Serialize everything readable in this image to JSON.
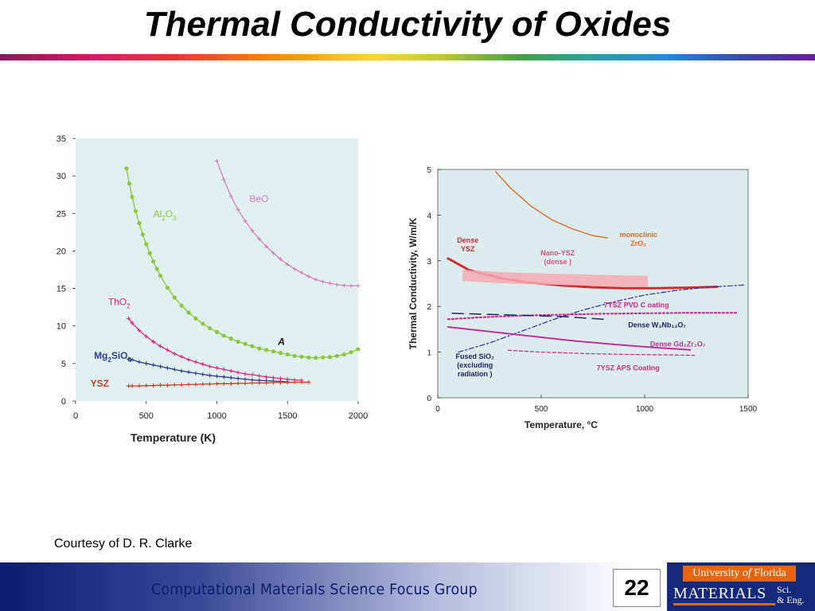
{
  "slide": {
    "title": "Thermal Conductivity of Oxides",
    "courtesy": "Courtesy of D. R. Clarke",
    "footer_group": "Computational Materials Science Focus Group",
    "slide_number": "22",
    "logo": {
      "university_pre": "University ",
      "university_of": "of",
      "university_post": " Florida",
      "materials": "MATERIALS",
      "sci": "Sci.",
      "eng": "& Eng."
    }
  },
  "colors": {
    "title": "#000000",
    "footer_text": "#0b1f6e",
    "logo_blue": "#14297a",
    "logo_orange": "#e8650f",
    "plot_bg_left": "#dff0ee",
    "plot_bg_right": "#dcebec"
  },
  "chart_data": [
    {
      "type": "scatter",
      "title": "",
      "xlabel": "Temperature  (K)",
      "ylabel": "",
      "xlim": [
        0,
        2000
      ],
      "ylim": [
        0,
        35
      ],
      "xticks": [
        0,
        500,
        1000,
        1500,
        2000
      ],
      "yticks": [
        0,
        5,
        10,
        15,
        20,
        25,
        30,
        35
      ],
      "annotations": [
        {
          "text": "A",
          "x": 1500,
          "y": 7.5
        }
      ],
      "series": [
        {
          "name": "BeO",
          "label_main": "BeO",
          "label_sub": "",
          "label_sub2": "",
          "label_tail": "",
          "label_x": 1230,
          "label_y": 26.5,
          "color": "#d77fc0",
          "marker": "+",
          "x": [
            1000,
            1050,
            1100,
            1150,
            1200,
            1250,
            1300,
            1350,
            1400,
            1450,
            1500,
            1550,
            1600,
            1650,
            1700,
            1750,
            1800,
            1850,
            1900,
            1950,
            2000
          ],
          "y": [
            32.0,
            29.5,
            27.3,
            25.5,
            24.0,
            22.7,
            21.6,
            20.6,
            19.7,
            18.9,
            18.2,
            17.6,
            17.1,
            16.6,
            16.2,
            15.9,
            15.7,
            15.5,
            15.4,
            15.35,
            15.35
          ]
        },
        {
          "name": "Al2O3",
          "label_main": "Al",
          "label_sub": "2",
          "label_sub2": "3",
          "label_tail": "O",
          "label_x": 550,
          "label_y": 24.5,
          "color": "#8cc63f",
          "marker": "o",
          "x": [
            360,
            380,
            400,
            425,
            450,
            475,
            500,
            525,
            550,
            575,
            600,
            650,
            700,
            750,
            800,
            850,
            900,
            950,
            1000,
            1050,
            1100,
            1150,
            1200,
            1250,
            1300,
            1350,
            1400,
            1450,
            1500,
            1550,
            1600,
            1650,
            1700,
            1750,
            1800,
            1850,
            1900,
            1950,
            2000
          ],
          "y": [
            31.0,
            29.0,
            27.2,
            25.3,
            23.7,
            22.2,
            20.9,
            19.7,
            18.6,
            17.6,
            16.7,
            15.1,
            13.8,
            12.7,
            11.8,
            11.0,
            10.3,
            9.7,
            9.2,
            8.7,
            8.3,
            7.9,
            7.6,
            7.3,
            7.0,
            6.8,
            6.6,
            6.4,
            6.2,
            6.0,
            5.9,
            5.8,
            5.75,
            5.8,
            5.85,
            6.0,
            6.2,
            6.5,
            6.9
          ]
        },
        {
          "name": "ThO2",
          "label_main": "ThO",
          "label_sub": "2",
          "label_sub2": "",
          "label_tail": "",
          "label_x": 230,
          "label_y": 12.8,
          "color": "#e0287a",
          "marker": "+",
          "x": [
            375,
            400,
            450,
            500,
            550,
            600,
            650,
            700,
            750,
            800,
            850,
            900,
            950,
            1000,
            1050,
            1100,
            1150,
            1200,
            1250,
            1300,
            1350,
            1400,
            1450,
            1500,
            1550,
            1600
          ],
          "y": [
            11.0,
            10.4,
            9.4,
            8.6,
            7.9,
            7.3,
            6.8,
            6.3,
            5.9,
            5.5,
            5.2,
            4.9,
            4.6,
            4.4,
            4.2,
            4.0,
            3.8,
            3.6,
            3.5,
            3.35,
            3.2,
            3.1,
            3.0,
            2.9,
            2.8,
            2.75
          ]
        },
        {
          "name": "Mg2SiO4",
          "label_main": "Mg",
          "label_sub": "2",
          "label_sub2": "4",
          "label_tail": "SiO",
          "label_x": 130,
          "label_y": 5.6,
          "color": "#2e3c9a",
          "marker": "+",
          "x": [
            375,
            400,
            450,
            500,
            550,
            600,
            650,
            700,
            750,
            800,
            850,
            900,
            950,
            1000,
            1050,
            1100,
            1150,
            1200,
            1250,
            1300,
            1350,
            1400,
            1450,
            1500
          ],
          "y": [
            5.6,
            5.5,
            5.2,
            5.0,
            4.8,
            4.6,
            4.4,
            4.2,
            4.0,
            3.85,
            3.7,
            3.55,
            3.4,
            3.3,
            3.2,
            3.1,
            3.0,
            2.9,
            2.8,
            2.75,
            2.7,
            2.65,
            2.6,
            2.55
          ]
        },
        {
          "name": "YSZ",
          "label_main": "YSZ",
          "label_sub": "",
          "label_sub2": "",
          "label_tail": "",
          "label_x": 105,
          "label_y": 1.9,
          "color": "#d03a2a",
          "marker": "+",
          "x": [
            375,
            400,
            450,
            500,
            550,
            600,
            650,
            700,
            750,
            800,
            850,
            900,
            950,
            1000,
            1050,
            1100,
            1150,
            1200,
            1250,
            1300,
            1350,
            1400,
            1450,
            1500,
            1550,
            1600,
            1650
          ],
          "y": [
            2.0,
            2.0,
            2.0,
            2.05,
            2.05,
            2.1,
            2.1,
            2.15,
            2.15,
            2.2,
            2.2,
            2.25,
            2.25,
            2.3,
            2.3,
            2.3,
            2.35,
            2.35,
            2.4,
            2.4,
            2.4,
            2.45,
            2.45,
            2.45,
            2.5,
            2.5,
            2.5
          ]
        }
      ]
    },
    {
      "type": "line",
      "title": "",
      "xlabel": "Temperature, °C",
      "ylabel": "Thermal Conductivity, W/m/K",
      "xlim": [
        0,
        1500
      ],
      "ylim": [
        0,
        5
      ],
      "xticks": [
        0,
        500,
        1000,
        1500
      ],
      "yticks": [
        0,
        1,
        2,
        3,
        4,
        5
      ],
      "series": [
        {
          "name": "monoclinic ZrO2",
          "color": "#e06a2a",
          "dash": "solid",
          "width": 1.4,
          "x": [
            280,
            350,
            450,
            550,
            650,
            750,
            820
          ],
          "y": [
            4.95,
            4.6,
            4.2,
            3.9,
            3.7,
            3.55,
            3.5
          ]
        },
        {
          "name": "Dense YSZ",
          "color": "#d42c2c",
          "dash": "solid",
          "width": 3,
          "x": [
            50,
            150,
            300,
            450,
            600,
            750,
            900,
            1050,
            1200,
            1350
          ],
          "y": [
            3.05,
            2.8,
            2.62,
            2.52,
            2.46,
            2.42,
            2.4,
            2.4,
            2.41,
            2.43
          ]
        },
        {
          "name": "Nano-YSZ (dense)",
          "color": "#f4a9b4",
          "dash": "band",
          "width": 14,
          "x": [
            120,
            300,
            500,
            700,
            850,
            1015
          ],
          "y": [
            2.68,
            2.63,
            2.6,
            2.58,
            2.56,
            2.55
          ]
        },
        {
          "name": "Fused SiO2 (excluding radiation)",
          "color": "#3a3ab0",
          "dash": "6,3,2,3",
          "width": 1.3,
          "x": [
            100,
            250,
            400,
            550,
            700,
            850,
            1000,
            1150,
            1300,
            1480
          ],
          "y": [
            1.0,
            1.2,
            1.45,
            1.7,
            1.92,
            2.1,
            2.25,
            2.35,
            2.42,
            2.47
          ]
        },
        {
          "name": "7YSZ PVD Coating",
          "color": "#d42a8a",
          "dash": "2,3",
          "width": 2.2,
          "x": [
            50,
            200,
            400,
            600,
            800,
            1000,
            1200,
            1450
          ],
          "y": [
            1.72,
            1.76,
            1.8,
            1.82,
            1.84,
            1.85,
            1.86,
            1.86
          ]
        },
        {
          "name": "Dense W3Nb14O7",
          "color": "#22226a",
          "dash": "14,8",
          "width": 1.5,
          "x": [
            70,
            300,
            600,
            800
          ],
          "y": [
            1.85,
            1.82,
            1.78,
            1.72
          ]
        },
        {
          "name": "Dense Gd2Zr2O7",
          "color": "#c0309a",
          "dash": "solid",
          "width": 2,
          "x": [
            50,
            250,
            450,
            650,
            850,
            1050,
            1220
          ],
          "y": [
            1.55,
            1.45,
            1.35,
            1.25,
            1.17,
            1.1,
            1.05
          ]
        },
        {
          "name": "7YSZ APS Coating",
          "color": "#d0307a",
          "dash": "4,3",
          "width": 1.3,
          "x": [
            340,
            500,
            700,
            900,
            1100,
            1240
          ],
          "y": [
            1.04,
            1.0,
            0.97,
            0.95,
            0.94,
            0.93
          ]
        }
      ],
      "labels": [
        {
          "lines": [
            "monoclinic",
            "ZrO₂"
          ],
          "x": 970,
          "y": 3.52,
          "color": "#e06a2a",
          "anchor": "middle"
        },
        {
          "lines": [
            "Dense",
            "YSZ"
          ],
          "x": 145,
          "y": 3.4,
          "color": "#d42c2c",
          "anchor": "middle"
        },
        {
          "lines": [
            "Nano-YSZ",
            "(dense )"
          ],
          "x": 580,
          "y": 3.12,
          "color": "#d05a7a",
          "anchor": "middle"
        },
        {
          "lines": [
            "7YSZ PVD C oating"
          ],
          "x": 960,
          "y": 1.98,
          "color": "#d42a8a",
          "anchor": "middle"
        },
        {
          "lines": [
            "Dense W₃Nb₁₄O₇"
          ],
          "x": 1060,
          "y": 1.54,
          "color": "#22226a",
          "anchor": "middle"
        },
        {
          "lines": [
            "Dense  Gd₂Zr₂O₇"
          ],
          "x": 1160,
          "y": 1.12,
          "color": "#c0309a",
          "anchor": "middle"
        },
        {
          "lines": [
            "Fused  SiO₂",
            "(excluding",
            "radiation )"
          ],
          "x": 180,
          "y": 0.85,
          "color": "#22226a",
          "anchor": "middle"
        },
        {
          "lines": [
            "7YSZ APS  Coating"
          ],
          "x": 920,
          "y": 0.6,
          "color": "#d0307a",
          "anchor": "middle"
        }
      ]
    }
  ]
}
